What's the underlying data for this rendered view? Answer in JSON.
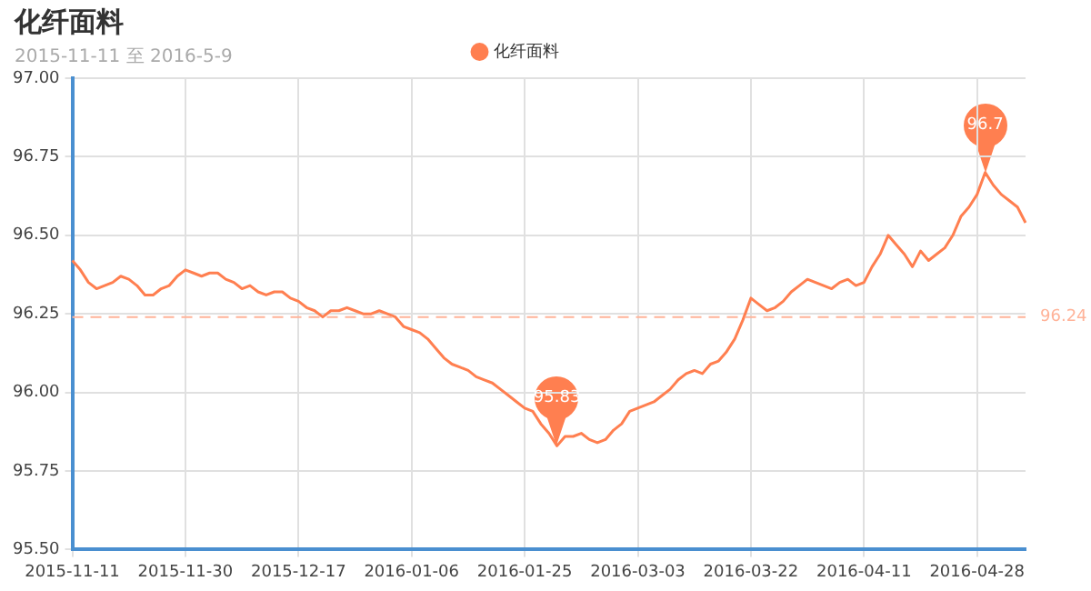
{
  "chart_data": {
    "type": "line",
    "title": "化纤面料",
    "subtitle": "2015-11-11 至 2016-5-9",
    "categories": [
      "2015-11-11",
      null,
      null,
      null,
      null,
      null,
      null,
      null,
      null,
      null,
      null,
      null,
      null,
      null,
      "2015-11-30",
      null,
      null,
      null,
      null,
      null,
      null,
      null,
      null,
      null,
      null,
      null,
      null,
      null,
      "2015-12-17",
      null,
      null,
      null,
      null,
      null,
      null,
      null,
      null,
      null,
      null,
      null,
      null,
      null,
      "2016-01-06",
      null,
      null,
      null,
      null,
      null,
      null,
      null,
      null,
      null,
      null,
      null,
      null,
      null,
      "2016-01-25",
      null,
      null,
      null,
      null,
      null,
      null,
      null,
      null,
      null,
      null,
      null,
      null,
      null,
      "2016-03-03",
      null,
      null,
      null,
      null,
      null,
      null,
      null,
      null,
      null,
      null,
      null,
      null,
      null,
      "2016-03-22",
      null,
      null,
      null,
      null,
      null,
      null,
      null,
      null,
      null,
      null,
      null,
      null,
      null,
      "2016-04-11",
      null,
      null,
      null,
      null,
      null,
      null,
      null,
      null,
      null,
      null,
      null,
      null,
      null,
      "2016-04-28",
      null,
      null,
      null,
      null,
      null,
      null
    ],
    "series": [
      {
        "name": "化纤面料",
        "color": "#ff7f50",
        "values": [
          96.42,
          96.39,
          96.35,
          96.33,
          96.34,
          96.35,
          96.37,
          96.36,
          96.34,
          96.31,
          96.31,
          96.33,
          96.34,
          96.37,
          96.39,
          96.38,
          96.37,
          96.38,
          96.38,
          96.36,
          96.35,
          96.33,
          96.34,
          96.32,
          96.31,
          96.32,
          96.32,
          96.3,
          96.29,
          96.27,
          96.26,
          96.24,
          96.26,
          96.26,
          96.27,
          96.26,
          96.25,
          96.25,
          96.26,
          96.25,
          96.24,
          96.21,
          96.2,
          96.19,
          96.17,
          96.14,
          96.11,
          96.09,
          96.08,
          96.07,
          96.05,
          96.04,
          96.03,
          96.01,
          95.99,
          95.97,
          95.95,
          95.94,
          95.9,
          95.87,
          95.83,
          95.86,
          95.86,
          95.87,
          95.85,
          95.84,
          95.85,
          95.88,
          95.9,
          95.94,
          95.95,
          95.96,
          95.97,
          95.99,
          96.01,
          96.04,
          96.06,
          96.07,
          96.06,
          96.09,
          96.1,
          96.13,
          96.17,
          96.23,
          96.3,
          96.28,
          96.26,
          96.27,
          96.29,
          96.32,
          96.34,
          96.36,
          96.35,
          96.34,
          96.33,
          96.35,
          96.36,
          96.34,
          96.35,
          96.4,
          96.44,
          96.5,
          96.47,
          96.44,
          96.4,
          96.45,
          96.42,
          96.44,
          96.46,
          96.5,
          96.56,
          96.59,
          96.63,
          96.7,
          96.66,
          96.63,
          96.61,
          96.59,
          96.54
        ]
      }
    ],
    "ylim": [
      95.5,
      97
    ],
    "yticks": [
      {
        "value": 95.5,
        "label": "95.50"
      },
      {
        "value": 95.75,
        "label": "95.75"
      },
      {
        "value": 96,
        "label": "96.00"
      },
      {
        "value": 96.25,
        "label": "96.25"
      },
      {
        "value": 96.5,
        "label": "96.50"
      },
      {
        "value": 96.75,
        "label": "96.75"
      },
      {
        "value": 97,
        "label": "97.00"
      }
    ],
    "grid": true,
    "legend": "top",
    "line_style": "solid",
    "ref_lines": [
      {
        "axis": "y",
        "value": 96.24,
        "label": "96.24",
        "color": "#ffb399",
        "line_style": "dashed"
      }
    ],
    "annotations": [
      {
        "text": "96.7",
        "y": 96.7
      },
      {
        "text": "95.83",
        "y": 95.83
      }
    ]
  }
}
